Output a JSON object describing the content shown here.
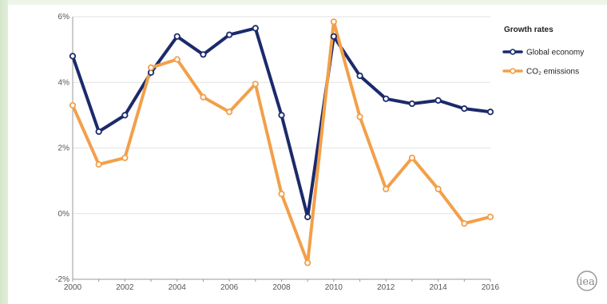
{
  "chart_data": {
    "type": "line",
    "title": "",
    "xlabel": "",
    "ylabel": "",
    "x": [
      2000,
      2001,
      2002,
      2003,
      2004,
      2005,
      2006,
      2007,
      2008,
      2009,
      2010,
      2011,
      2012,
      2013,
      2014,
      2015,
      2016
    ],
    "x_tick_labels": [
      "2000",
      "2002",
      "2004",
      "2006",
      "2008",
      "2010",
      "2012",
      "2014",
      "2016"
    ],
    "y_tick_labels": [
      "6%",
      "4%",
      "2%",
      "0%",
      "-2%"
    ],
    "ylim": [
      -2,
      6
    ],
    "grid": "horizontal",
    "legend_title": "Growth rates",
    "legend_position": "top-right",
    "series": [
      {
        "name": "Global economy",
        "color": "#1b2a6b",
        "values": [
          4.8,
          2.5,
          3.0,
          4.3,
          5.4,
          4.85,
          5.45,
          5.65,
          3.0,
          -0.1,
          5.4,
          4.2,
          3.5,
          3.35,
          3.45,
          3.2,
          3.1
        ]
      },
      {
        "name": "CO₂ emissions",
        "color": "#f2a04a",
        "values": [
          3.3,
          1.5,
          1.7,
          4.45,
          4.7,
          3.55,
          3.1,
          3.95,
          0.6,
          -1.5,
          5.85,
          2.95,
          0.75,
          1.7,
          0.75,
          -0.3,
          -0.1
        ]
      }
    ]
  },
  "logo": {
    "text": "iea"
  }
}
